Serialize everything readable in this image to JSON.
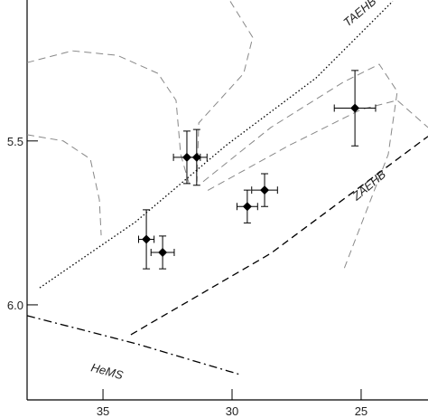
{
  "chart_data": {
    "type": "scatter",
    "xlim": [
      37.94,
      22.41
    ],
    "ylim": [
      6.29,
      5.07
    ],
    "xticks": [
      35,
      30,
      25
    ],
    "yticks": [
      5.5,
      {
        "value": 6,
        "label": "6.0"
      }
    ],
    "points": {
      "color": "#000000",
      "x": [
        31.75,
        31.37,
        33.32,
        32.69,
        29.41,
        28.74,
        25.24
      ],
      "values": [
        5.55,
        5.55,
        5.8,
        5.84,
        5.7,
        5.65,
        5.4
      ],
      "xerr": [
        0.52,
        0.4,
        0.3,
        0.45,
        0.4,
        0.5,
        0.8
      ],
      "yerr": [
        0.08,
        0.085,
        0.09,
        0.05,
        0.05,
        0.05,
        0.115
      ]
    },
    "lines": [
      {
        "name": "TAEHB",
        "style": "dotted",
        "color": "#000000",
        "x": [
          37.45,
          33.74,
          30.24,
          26.75,
          23.78
        ],
        "y": [
          5.948,
          5.747,
          5.514,
          5.308,
          5.074
        ]
      },
      {
        "name": "ZAEHB",
        "style": "dashed",
        "color": "#000000",
        "x": [
          33.92,
          28.5,
          22.41
        ],
        "y": [
          6.091,
          5.843,
          5.486
        ]
      },
      {
        "name": "HeMS",
        "style": "dashdot",
        "color": "#000000",
        "x": [
          37.94,
          33.74,
          29.72
        ],
        "y": [
          6.033,
          6.118,
          6.212
        ]
      },
      {
        "style": "dashed",
        "color": "#888888",
        "x": [
          37.94,
          36.19,
          34.44,
          32.87,
          32.17,
          31.99,
          31.64
        ],
        "y": [
          5.261,
          5.225,
          5.239,
          5.294,
          5.376,
          5.541,
          5.637
        ]
      },
      {
        "style": "dashed",
        "color": "#888888",
        "x": [
          37.94,
          36.54,
          35.49,
          35.14,
          35.07
        ],
        "y": [
          5.481,
          5.5,
          5.555,
          5.679,
          5.788
        ]
      },
      {
        "style": "dashed",
        "color": "#888888",
        "x": [
          30.07,
          29.2,
          29.55,
          31.29,
          31.36
        ],
        "y": [
          5.074,
          5.184,
          5.294,
          5.445,
          5.624
        ]
      },
      {
        "style": "dashed",
        "color": "#888888",
        "x": [
          31.12,
          28.5,
          25.7,
          24.3,
          23.6,
          23.95,
          25.7
        ],
        "y": [
          5.624,
          5.459,
          5.321,
          5.266,
          5.349,
          5.541,
          5.898
        ]
      },
      {
        "style": "dashed",
        "color": "#888888",
        "x": [
          30.94,
          27.8,
          25.0,
          23.6,
          22.41
        ],
        "y": [
          5.651,
          5.514,
          5.404,
          5.376,
          5.459
        ]
      }
    ]
  }
}
